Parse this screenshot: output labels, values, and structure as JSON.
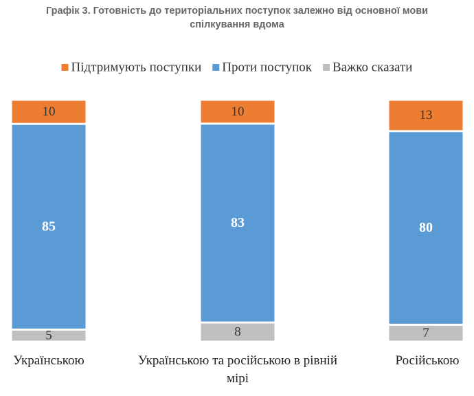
{
  "chart_data": {
    "type": "stacked-bar",
    "title": "Графік 3. Готовність до територіальних поступок залежно від основної мови спілкування вдома",
    "categories": [
      "Українською",
      "Українською та російською в рівній мірі",
      "Російською"
    ],
    "series": [
      {
        "name": "Підтримують поступки",
        "color": "#ed7d31",
        "values": [
          10,
          10,
          13
        ]
      },
      {
        "name": "Проти поступок",
        "color": "#5b9bd5",
        "values": [
          85,
          83,
          80
        ]
      },
      {
        "name": "Важко сказати",
        "color": "#bfbfbf",
        "values": [
          5,
          8,
          7
        ]
      }
    ],
    "legend": "top"
  }
}
